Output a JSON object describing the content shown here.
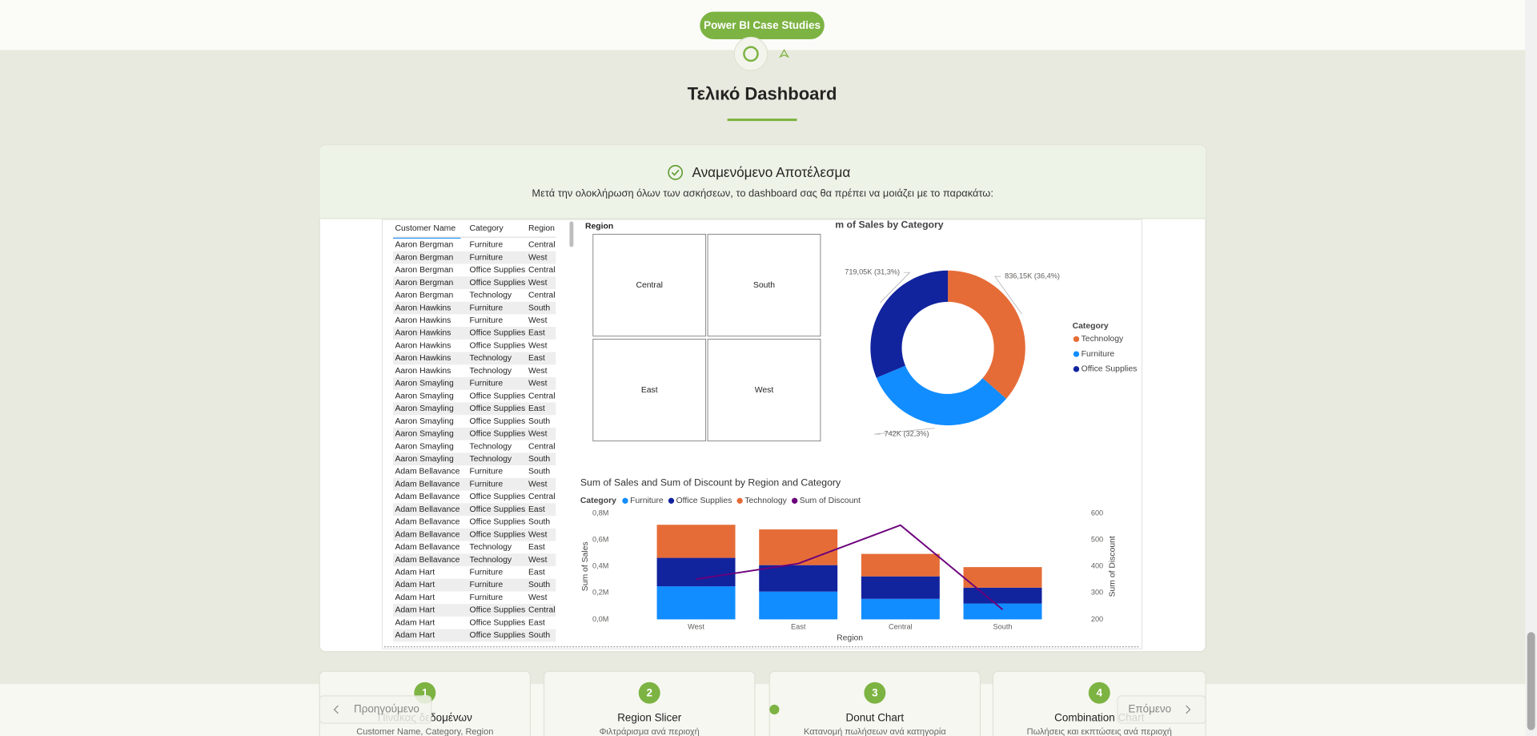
{
  "header": {
    "button": "Power BI Case Studies"
  },
  "section": {
    "title": "Τελικό Dashboard",
    "card_title": "Αναμενόμενο Αποτέλεσμα",
    "card_subtitle": "Μετά την ολοκλήρωση όλων των ασκήσεων, το dashboard σας θα πρέπει να μοιάζει με το παρακάτω:"
  },
  "table": {
    "columns": [
      "Customer Name",
      "Category",
      "Region"
    ],
    "rows": [
      [
        "Aaron Bergman",
        "Furniture",
        "Central"
      ],
      [
        "Aaron Bergman",
        "Furniture",
        "West"
      ],
      [
        "Aaron Bergman",
        "Office Supplies",
        "Central"
      ],
      [
        "Aaron Bergman",
        "Office Supplies",
        "West"
      ],
      [
        "Aaron Bergman",
        "Technology",
        "Central"
      ],
      [
        "Aaron Hawkins",
        "Furniture",
        "South"
      ],
      [
        "Aaron Hawkins",
        "Furniture",
        "West"
      ],
      [
        "Aaron Hawkins",
        "Office Supplies",
        "East"
      ],
      [
        "Aaron Hawkins",
        "Office Supplies",
        "West"
      ],
      [
        "Aaron Hawkins",
        "Technology",
        "East"
      ],
      [
        "Aaron Hawkins",
        "Technology",
        "West"
      ],
      [
        "Aaron Smayling",
        "Furniture",
        "West"
      ],
      [
        "Aaron Smayling",
        "Office Supplies",
        "Central"
      ],
      [
        "Aaron Smayling",
        "Office Supplies",
        "East"
      ],
      [
        "Aaron Smayling",
        "Office Supplies",
        "South"
      ],
      [
        "Aaron Smayling",
        "Office Supplies",
        "West"
      ],
      [
        "Aaron Smayling",
        "Technology",
        "Central"
      ],
      [
        "Aaron Smayling",
        "Technology",
        "South"
      ],
      [
        "Adam Bellavance",
        "Furniture",
        "South"
      ],
      [
        "Adam Bellavance",
        "Furniture",
        "West"
      ],
      [
        "Adam Bellavance",
        "Office Supplies",
        "Central"
      ],
      [
        "Adam Bellavance",
        "Office Supplies",
        "East"
      ],
      [
        "Adam Bellavance",
        "Office Supplies",
        "South"
      ],
      [
        "Adam Bellavance",
        "Office Supplies",
        "West"
      ],
      [
        "Adam Bellavance",
        "Technology",
        "East"
      ],
      [
        "Adam Bellavance",
        "Technology",
        "West"
      ],
      [
        "Adam Hart",
        "Furniture",
        "East"
      ],
      [
        "Adam Hart",
        "Furniture",
        "South"
      ],
      [
        "Adam Hart",
        "Furniture",
        "West"
      ],
      [
        "Adam Hart",
        "Office Supplies",
        "Central"
      ],
      [
        "Adam Hart",
        "Office Supplies",
        "East"
      ],
      [
        "Adam Hart",
        "Office Supplies",
        "South"
      ]
    ]
  },
  "slicer": {
    "title": "Region",
    "items": [
      "Central",
      "South",
      "East",
      "West"
    ]
  },
  "donut": {
    "type": "pie",
    "title": "m of Sales by Category",
    "legend_title": "Category",
    "categories": [
      "Technology",
      "Furniture",
      "Office Supplies"
    ],
    "values": [
      836.15,
      742,
      719.05
    ],
    "value_labels": [
      "836,15K (36,4%)",
      "742K (32,3%)",
      "719,05K (31,3%)"
    ],
    "colors": [
      "#e66c37",
      "#118dff",
      "#12239e"
    ]
  },
  "combo": {
    "type": "bar",
    "title": "Sum of Sales and Sum of Discount by Region and Category",
    "legend_title": "Category",
    "x_label": "Region",
    "y_label": "Sum of Sales",
    "y2_label": "Sum of Discount",
    "categories": [
      "West",
      "East",
      "Central",
      "South"
    ],
    "series": [
      {
        "name": "Furniture",
        "color": "#118dff",
        "values": [
          0.25,
          0.21,
          0.155,
          0.12
        ]
      },
      {
        "name": "Office Supplies",
        "color": "#12239e",
        "values": [
          0.215,
          0.2,
          0.17,
          0.12
        ]
      },
      {
        "name": "Technology",
        "color": "#e66c37",
        "values": [
          0.25,
          0.27,
          0.17,
          0.155
        ]
      },
      {
        "name": "Sum of Discount",
        "color": "#6b007b",
        "type": "line",
        "axis": "y2",
        "values": [
          352,
          411,
          556,
          237
        ]
      }
    ],
    "ylim": [
      0,
      0.8
    ],
    "yticks": [
      {
        "value": 0,
        "label": "0,0M"
      },
      {
        "value": 0.2,
        "label": "0,2M"
      },
      {
        "value": 0.4,
        "label": "0,4M"
      },
      {
        "value": 0.6,
        "label": "0,6M"
      },
      {
        "value": 0.8,
        "label": "0,8M"
      }
    ],
    "y2lim": [
      200,
      600
    ],
    "y2ticks": [
      200,
      300,
      400,
      500,
      600
    ]
  },
  "steps": [
    {
      "number": 1,
      "title": "Πίνακας δεδομένων",
      "description": "Customer Name, Category, Region"
    },
    {
      "number": 2,
      "title": "Region Slicer",
      "description": "Φιλτράρισμα ανά περιοχή"
    },
    {
      "number": 3,
      "title": "Donut Chart",
      "description": "Κατανομή πωλήσεων ανά κατηγορία"
    },
    {
      "number": 4,
      "title": "Combination Chart",
      "description": "Πωλήσεις και εκπτώσεις ανά περιοχή"
    }
  ],
  "nav": {
    "previous": "Προηγούμενο",
    "next": "Επόμενο"
  }
}
